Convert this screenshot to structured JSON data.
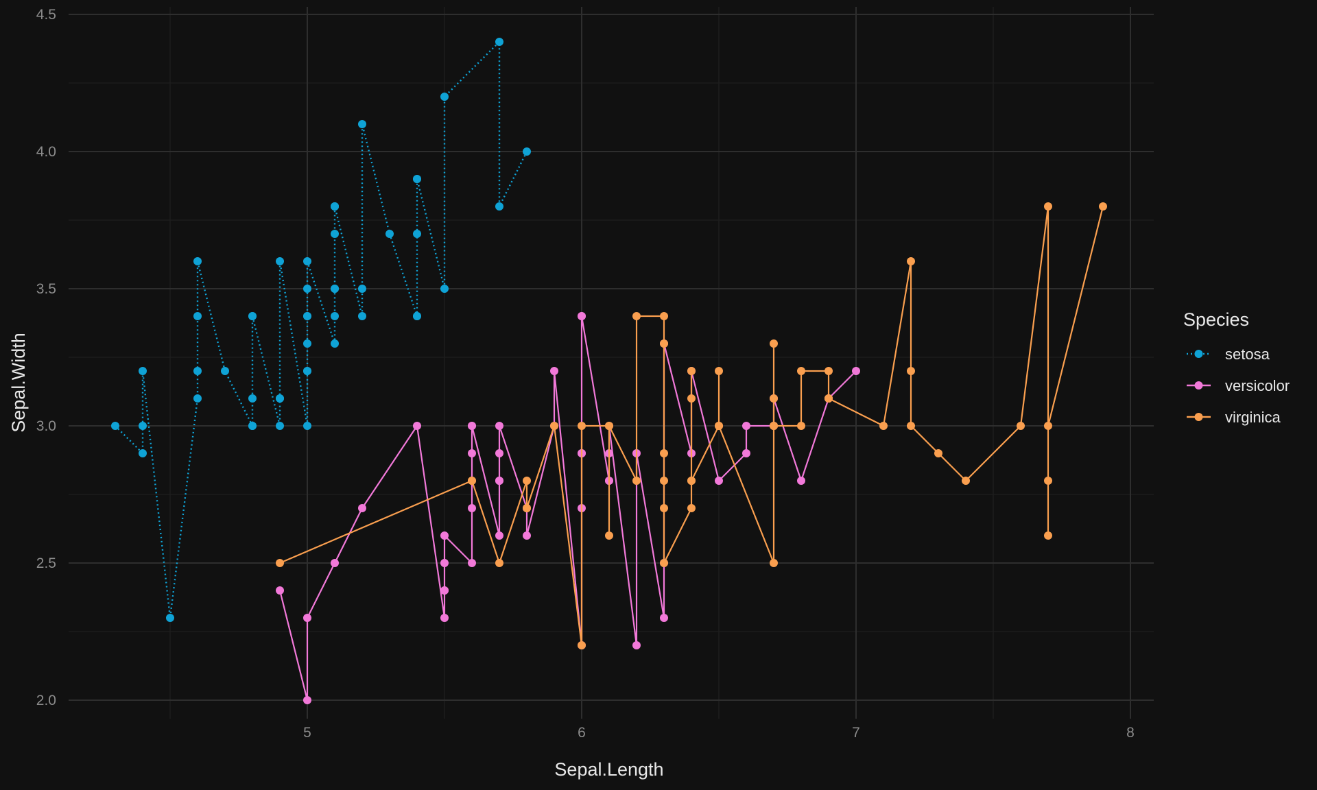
{
  "chart_data": {
    "type": "line",
    "xlabel": "Sepal.Length",
    "ylabel": "Sepal.Width",
    "xlim": [
      4.2,
      8.08
    ],
    "ylim": [
      1.92,
      4.5
    ],
    "x_ticks": [
      5,
      6,
      7,
      8
    ],
    "x_tick_labels": [
      "5",
      "6",
      "7",
      "8"
    ],
    "y_ticks": [
      2.0,
      2.5,
      3.0,
      3.5,
      4.0,
      4.5
    ],
    "y_tick_labels": [
      "2.0",
      "2.5",
      "3.0",
      "3.5",
      "4.0",
      "4.5"
    ],
    "x_minor_ticks": [
      4.5,
      5.5,
      6.5,
      7.5
    ],
    "y_minor_ticks": [
      2.25,
      2.75,
      3.25,
      3.75,
      4.25
    ],
    "grid": true,
    "legend": {
      "title": "Species",
      "placement": "right"
    },
    "series": [
      {
        "name": "setosa",
        "color": "#0fa3d6",
        "line_style": "dotted",
        "x": [
          4.3,
          4.4,
          4.4,
          4.4,
          4.5,
          4.6,
          4.6,
          4.6,
          4.6,
          4.7,
          4.8,
          4.8,
          4.8,
          4.8,
          4.8,
          4.9,
          4.9,
          4.9,
          4.9,
          5.0,
          5.0,
          5.0,
          5.0,
          5.0,
          5.0,
          5.0,
          5.0,
          5.1,
          5.1,
          5.1,
          5.1,
          5.1,
          5.1,
          5.1,
          5.1,
          5.2,
          5.2,
          5.2,
          5.3,
          5.4,
          5.4,
          5.4,
          5.4,
          5.4,
          5.5,
          5.5,
          5.7,
          5.7,
          5.8
        ],
        "y": [
          3.0,
          2.9,
          3.0,
          3.2,
          2.3,
          3.1,
          3.2,
          3.4,
          3.6,
          3.2,
          3.0,
          3.0,
          3.1,
          3.4,
          3.4,
          3.0,
          3.1,
          3.1,
          3.6,
          3.0,
          3.2,
          3.2,
          3.3,
          3.4,
          3.4,
          3.5,
          3.6,
          3.3,
          3.4,
          3.5,
          3.5,
          3.7,
          3.8,
          3.8,
          3.8,
          3.4,
          3.5,
          4.1,
          3.7,
          3.4,
          3.4,
          3.7,
          3.9,
          3.9,
          3.5,
          4.2,
          4.4,
          3.8,
          4.0
        ]
      },
      {
        "name": "versicolor",
        "color": "#f279d9",
        "line_style": "solid",
        "x": [
          4.9,
          5.0,
          5.0,
          5.1,
          5.2,
          5.4,
          5.5,
          5.5,
          5.5,
          5.5,
          5.5,
          5.6,
          5.6,
          5.6,
          5.6,
          5.6,
          5.7,
          5.7,
          5.7,
          5.7,
          5.7,
          5.8,
          5.8,
          5.8,
          5.9,
          5.9,
          6.0,
          6.0,
          6.0,
          6.0,
          6.0,
          6.0,
          6.1,
          6.1,
          6.1,
          6.1,
          6.2,
          6.2,
          6.3,
          6.3,
          6.3,
          6.4,
          6.4,
          6.5,
          6.6,
          6.6,
          6.7,
          6.7,
          6.8,
          6.9,
          7.0
        ],
        "y": [
          2.4,
          2.0,
          2.3,
          2.5,
          2.7,
          3.0,
          2.3,
          2.4,
          2.4,
          2.5,
          2.6,
          2.5,
          2.7,
          2.9,
          3.0,
          3.0,
          2.6,
          2.8,
          2.8,
          2.9,
          3.0,
          2.7,
          2.7,
          2.6,
          3.0,
          3.2,
          2.2,
          2.7,
          2.9,
          3.4,
          2.9,
          3.4,
          2.8,
          2.8,
          2.9,
          3.0,
          2.2,
          2.9,
          2.3,
          2.5,
          3.3,
          2.9,
          3.2,
          2.8,
          2.9,
          3.0,
          3.0,
          3.1,
          2.8,
          3.1,
          3.2
        ]
      },
      {
        "name": "virginica",
        "color": "#fa9f4f",
        "line_style": "solid",
        "x": [
          4.9,
          5.6,
          5.6,
          5.7,
          5.8,
          5.8,
          5.8,
          5.9,
          6.0,
          6.0,
          6.1,
          6.1,
          6.1,
          6.2,
          6.2,
          6.3,
          6.3,
          6.3,
          6.3,
          6.3,
          6.3,
          6.4,
          6.4,
          6.4,
          6.4,
          6.4,
          6.5,
          6.5,
          6.5,
          6.5,
          6.7,
          6.7,
          6.7,
          6.7,
          6.7,
          6.8,
          6.8,
          6.9,
          6.9,
          6.9,
          7.1,
          7.2,
          7.2,
          7.2,
          7.3,
          7.4,
          7.6,
          7.7,
          7.7,
          7.7,
          7.7,
          7.9
        ],
        "y": [
          2.5,
          2.8,
          2.8,
          2.5,
          2.8,
          2.7,
          2.7,
          3.0,
          2.2,
          3.0,
          3.0,
          2.6,
          3.0,
          2.8,
          3.4,
          3.4,
          3.3,
          2.9,
          2.8,
          2.7,
          2.5,
          2.7,
          2.8,
          3.2,
          3.1,
          2.8,
          3.0,
          3.2,
          3.0,
          3.0,
          2.5,
          3.3,
          3.0,
          3.1,
          3.0,
          3.0,
          3.2,
          3.2,
          3.1,
          3.1,
          3.0,
          3.6,
          3.2,
          3.0,
          2.9,
          2.8,
          3.0,
          3.8,
          2.6,
          2.8,
          3.0,
          3.8
        ]
      }
    ]
  }
}
